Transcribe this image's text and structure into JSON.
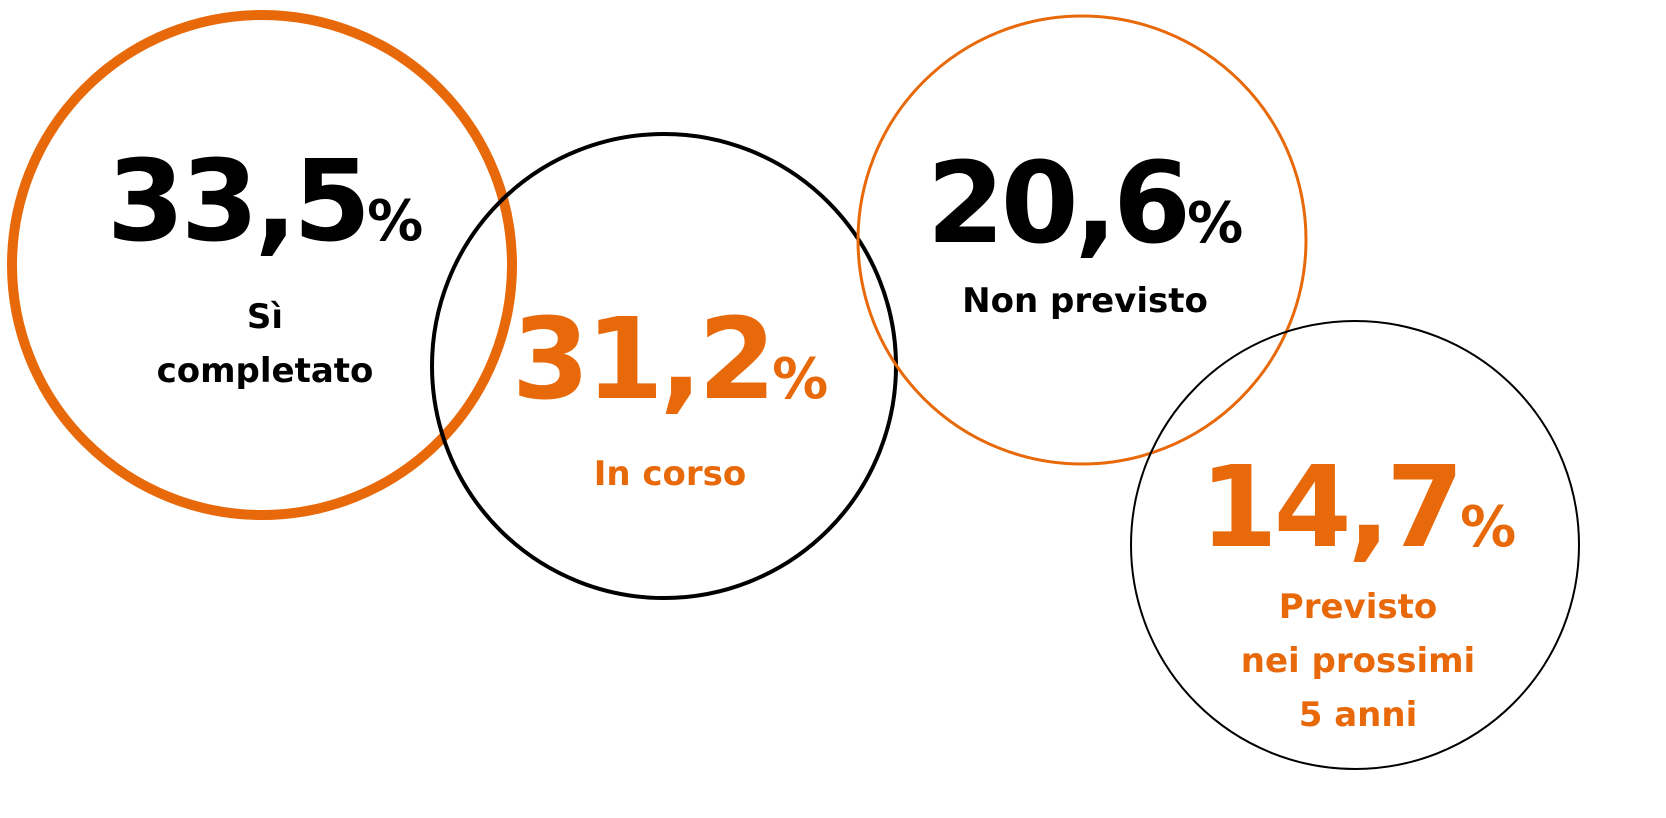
{
  "items": [
    {
      "value": "33,5",
      "unit": "%",
      "label": [
        "Sì",
        "completato"
      ]
    },
    {
      "value": "31,2",
      "unit": "%",
      "label": [
        "In corso"
      ]
    },
    {
      "value": "20,6",
      "unit": "%",
      "label": [
        "Non previsto"
      ]
    },
    {
      "value": "14,7",
      "unit": "%",
      "label": [
        "Previsto",
        "nei prossimi",
        "5 anni"
      ]
    }
  ]
}
